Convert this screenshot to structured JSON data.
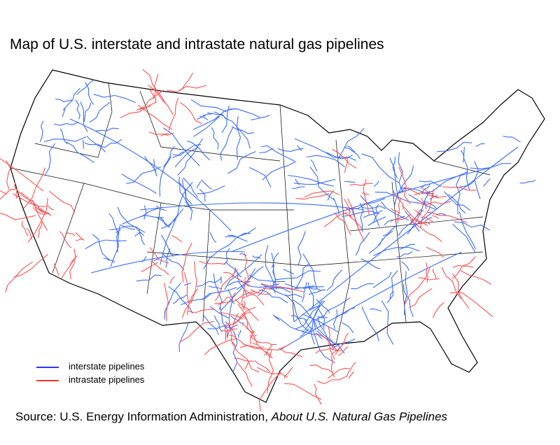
{
  "title": "Map of U.S. interstate and intrastate natural gas pipelines",
  "legend": [
    {
      "label": "interstate pipelines",
      "color": "#3333ff"
    },
    {
      "label": "intrastate pipelines",
      "color": "#ff3333"
    }
  ],
  "source": {
    "prefix": "Source: U.S. Energy Information Administration, ",
    "publication": "About U.S. Natural Gas Pipelines"
  },
  "colors": {
    "interstate": "#3a6cff",
    "intrastate": "#ff5050",
    "borders": "#000000"
  }
}
